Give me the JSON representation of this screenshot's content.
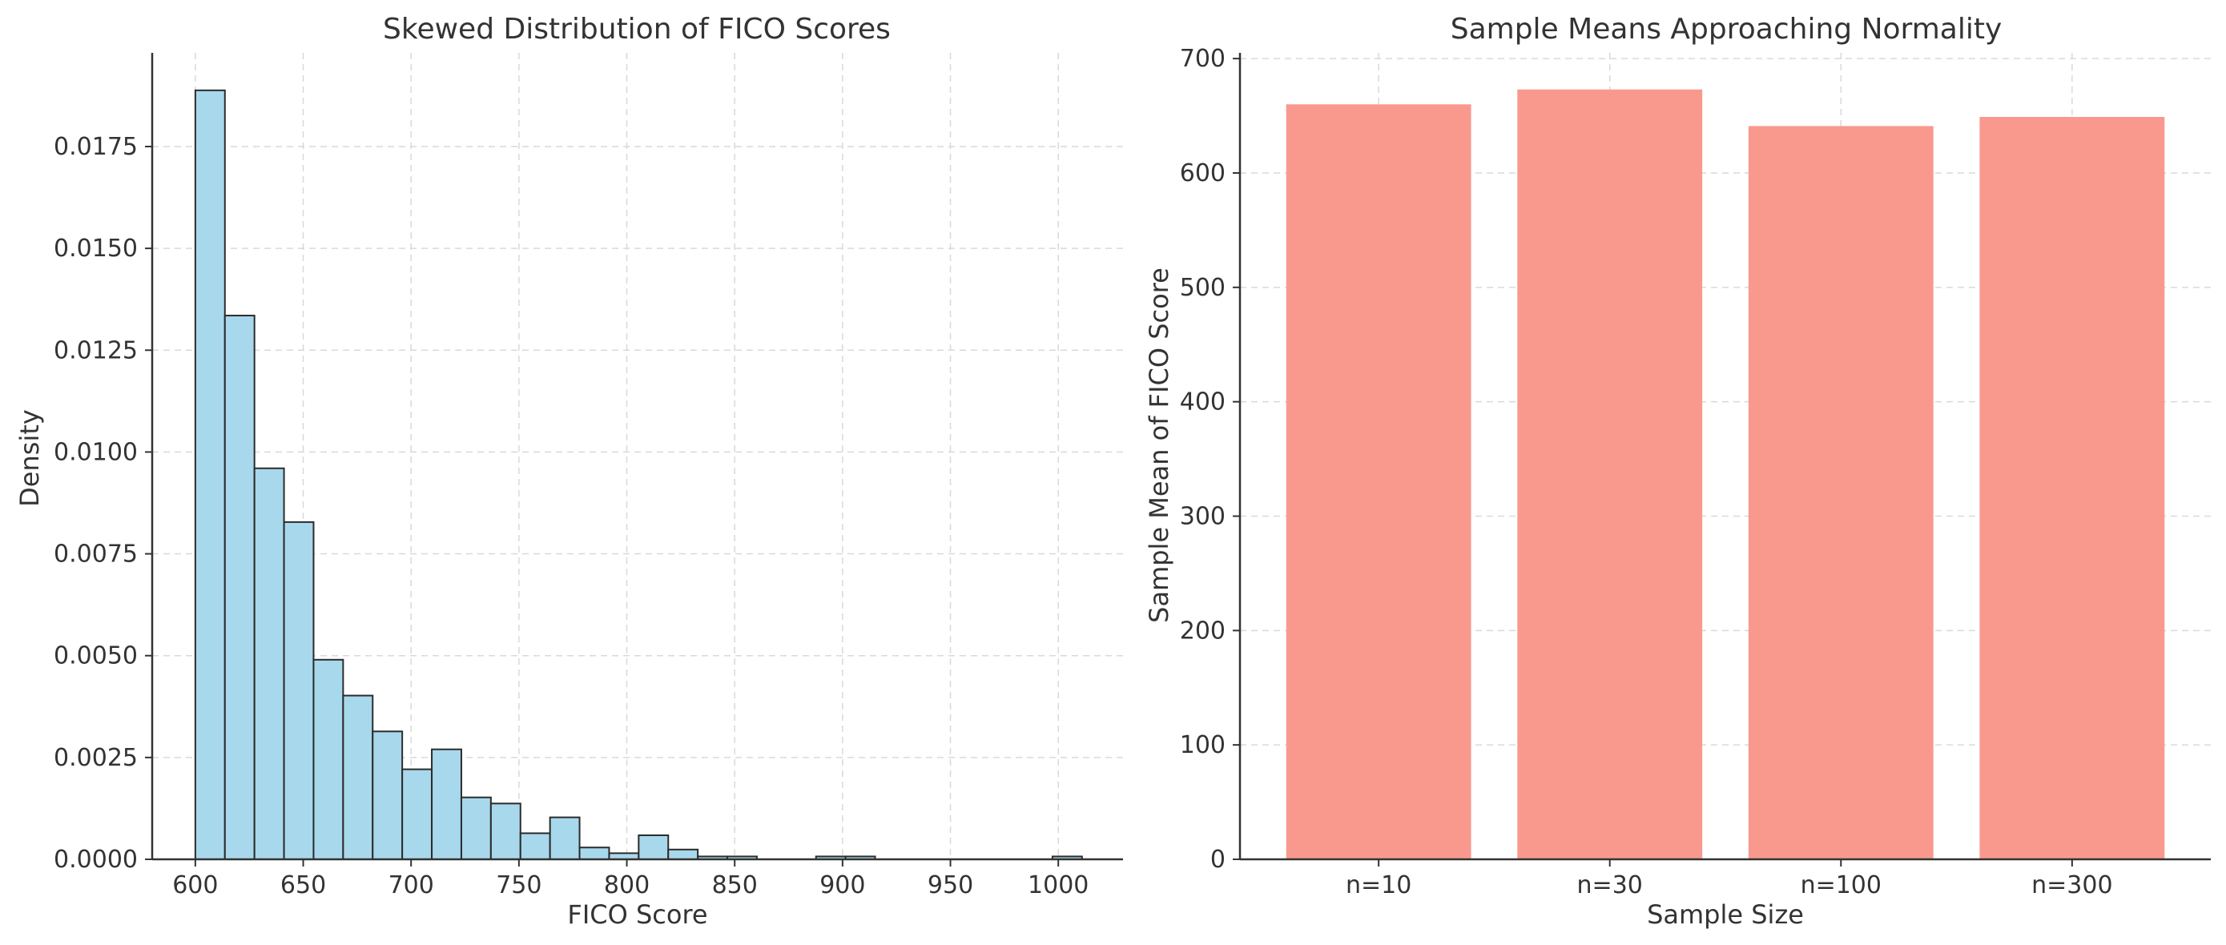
{
  "chart_data": [
    {
      "type": "histogram",
      "title": "Skewed Distribution of FICO Scores",
      "xlabel": "FICO Score",
      "ylabel": "Density",
      "xlim": [
        580,
        1030
      ],
      "ylim": [
        0,
        0.0198
      ],
      "xticks": [
        600,
        650,
        700,
        750,
        800,
        850,
        900,
        950,
        1000
      ],
      "yticks": [
        0,
        0.0025,
        0.005,
        0.0075,
        0.01,
        0.0125,
        0.015,
        0.0175
      ],
      "ytick_labels": [
        "0.0000",
        "0.0025",
        "0.0050",
        "0.0075",
        "0.0100",
        "0.0125",
        "0.0150",
        "0.0175"
      ],
      "grid": true,
      "bin_edges": [
        600,
        613.7,
        627.4,
        641.1,
        654.8,
        668.5,
        682.2,
        695.9,
        709.6,
        723.3,
        737.0,
        750.7,
        764.4,
        778.1,
        791.8,
        805.5,
        819.2,
        832.9,
        846.6,
        860.3,
        874.0,
        887.7,
        901.4,
        915.1,
        928.8,
        942.5,
        956.2,
        969.9,
        983.6,
        997.3,
        1011.0
      ],
      "values": [
        0.01888,
        0.01335,
        0.0096,
        0.00828,
        0.0049,
        0.00402,
        0.00314,
        0.00221,
        0.0027,
        0.00152,
        0.00137,
        0.00064,
        0.00103,
        0.00029,
        0.00015,
        0.00059,
        0.00024,
        7e-05,
        7e-05,
        0,
        0,
        7e-05,
        7e-05,
        0,
        0,
        0,
        0,
        0,
        0,
        7e-05
      ],
      "colors": {
        "fill": "#a8d8ec",
        "edge": "#2b2b2b"
      }
    },
    {
      "type": "bar",
      "title": "Sample Means Approaching Normality",
      "xlabel": "Sample Size",
      "ylabel": "Sample Mean of FICO Score",
      "categories": [
        "n=10",
        "n=30",
        "n=100",
        "n=300"
      ],
      "values": [
        660,
        673,
        641,
        649
      ],
      "ylim": [
        0,
        705
      ],
      "yticks": [
        0,
        100,
        200,
        300,
        400,
        500,
        600,
        700
      ],
      "grid": true,
      "colors": {
        "fill": "#f9998e"
      }
    }
  ]
}
